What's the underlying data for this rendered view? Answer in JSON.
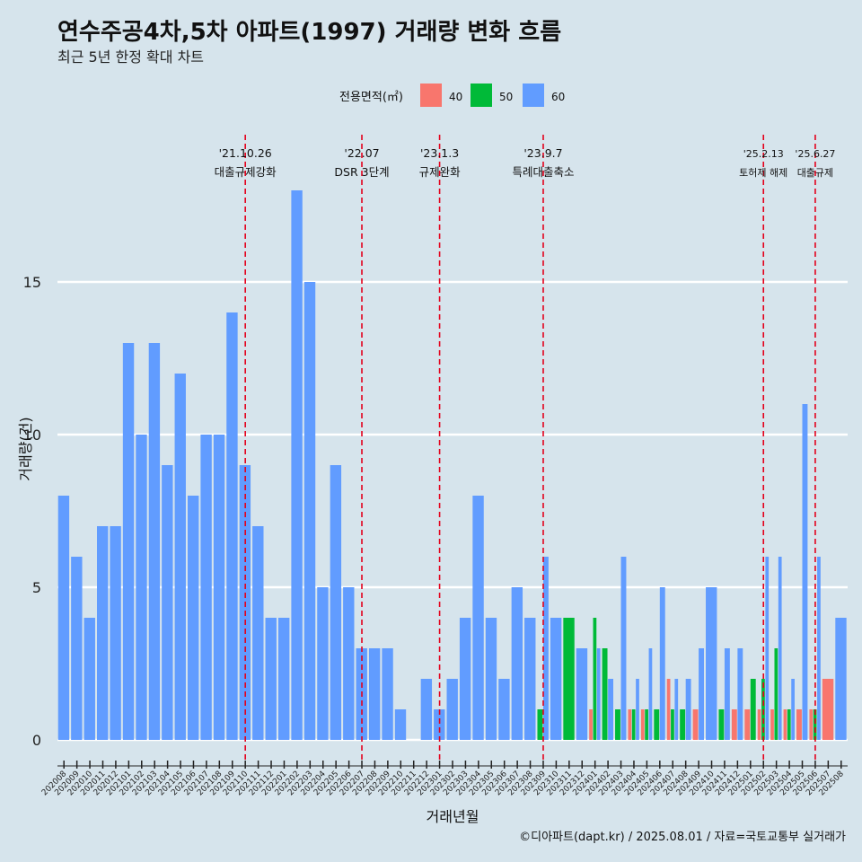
{
  "chart_data": {
    "type": "bar",
    "title": "연수주공4차,5차 아파트(1997) 거래량 변화 흐름",
    "subtitle": "최근 5년 한정 확대 차트",
    "xlabel": "거래년월",
    "ylabel": "거래량(건)",
    "caption": "©디아파트(dapt.kr) / 2025.08.01 / 자료=국토교통부 실거래가",
    "legend_title": "전용면적(㎡)",
    "legend_position": "top",
    "ylim": [
      0,
      19
    ],
    "y_ticks": [
      0,
      5,
      10,
      15
    ],
    "grid": true,
    "colors": {
      "40": "#f8766d",
      "50": "#00ba38",
      "60": "#619cff",
      "background": "#d6e4ec",
      "vline": "#e3001b"
    },
    "categories": [
      "202008",
      "202009",
      "202010",
      "202011",
      "202012",
      "202101",
      "202102",
      "202103",
      "202104",
      "202105",
      "202106",
      "202107",
      "202108",
      "202109",
      "202110",
      "202111",
      "202112",
      "202201",
      "202202",
      "202203",
      "202204",
      "202205",
      "202206",
      "202207",
      "202208",
      "202209",
      "202210",
      "202211",
      "202212",
      "202301",
      "202302",
      "202303",
      "202304",
      "202305",
      "202306",
      "202307",
      "202308",
      "202309",
      "202310",
      "202311",
      "202312",
      "202401",
      "202402",
      "202403",
      "202404",
      "202405",
      "202406",
      "202407",
      "202408",
      "202409",
      "202410",
      "202411",
      "202412",
      "202501",
      "202502",
      "202503",
      "202504",
      "202505",
      "202506",
      "202507",
      "202508"
    ],
    "series": [
      {
        "name": "40",
        "values": [
          0,
          0,
          0,
          0,
          0,
          0,
          0,
          0,
          0,
          0,
          0,
          0,
          0,
          0,
          0,
          0,
          0,
          0,
          0,
          0,
          0,
          0,
          0,
          0,
          0,
          0,
          0,
          0,
          0,
          0,
          0,
          0,
          0,
          0,
          0,
          0,
          0,
          0,
          0,
          0,
          0,
          1,
          0,
          0,
          1,
          1,
          0,
          2,
          0,
          1,
          0,
          0,
          1,
          1,
          1,
          1,
          1,
          1,
          1,
          2,
          0
        ]
      },
      {
        "name": "50",
        "values": [
          0,
          0,
          0,
          0,
          0,
          0,
          0,
          0,
          0,
          0,
          0,
          0,
          0,
          0,
          0,
          0,
          0,
          0,
          0,
          0,
          0,
          0,
          0,
          0,
          0,
          0,
          0,
          0,
          0,
          0,
          0,
          0,
          0,
          0,
          0,
          0,
          0,
          1,
          0,
          4,
          0,
          4,
          3,
          1,
          1,
          1,
          1,
          1,
          1,
          0,
          0,
          1,
          0,
          2,
          2,
          3,
          1,
          0,
          1,
          0,
          0
        ]
      },
      {
        "name": "60",
        "values": [
          8,
          6,
          4,
          7,
          7,
          13,
          10,
          13,
          9,
          12,
          8,
          10,
          10,
          14,
          9,
          7,
          4,
          4,
          18,
          15,
          5,
          9,
          5,
          3,
          3,
          3,
          1,
          0,
          2,
          1,
          2,
          4,
          8,
          4,
          2,
          5,
          4,
          6,
          4,
          0,
          3,
          3,
          2,
          6,
          2,
          3,
          5,
          2,
          2,
          3,
          5,
          3,
          3,
          0,
          6,
          6,
          2,
          11,
          6,
          0,
          4
        ]
      }
    ],
    "annotations": [
      {
        "date": "'21.10.26",
        "label": "대출규제강화",
        "category": "202110"
      },
      {
        "date": "'22.07",
        "label": "DSR 3단계",
        "category": "202207"
      },
      {
        "date": "'23.1.3",
        "label": "규제완화",
        "category": "202301"
      },
      {
        "date": "'23.9.7",
        "label": "특례대출축소",
        "category": "202309"
      },
      {
        "date": "'25.2.13",
        "label": "토허제 해제",
        "category": "202502"
      },
      {
        "date": "'25.6.27",
        "label": "대출규제",
        "category": "202506"
      }
    ]
  }
}
